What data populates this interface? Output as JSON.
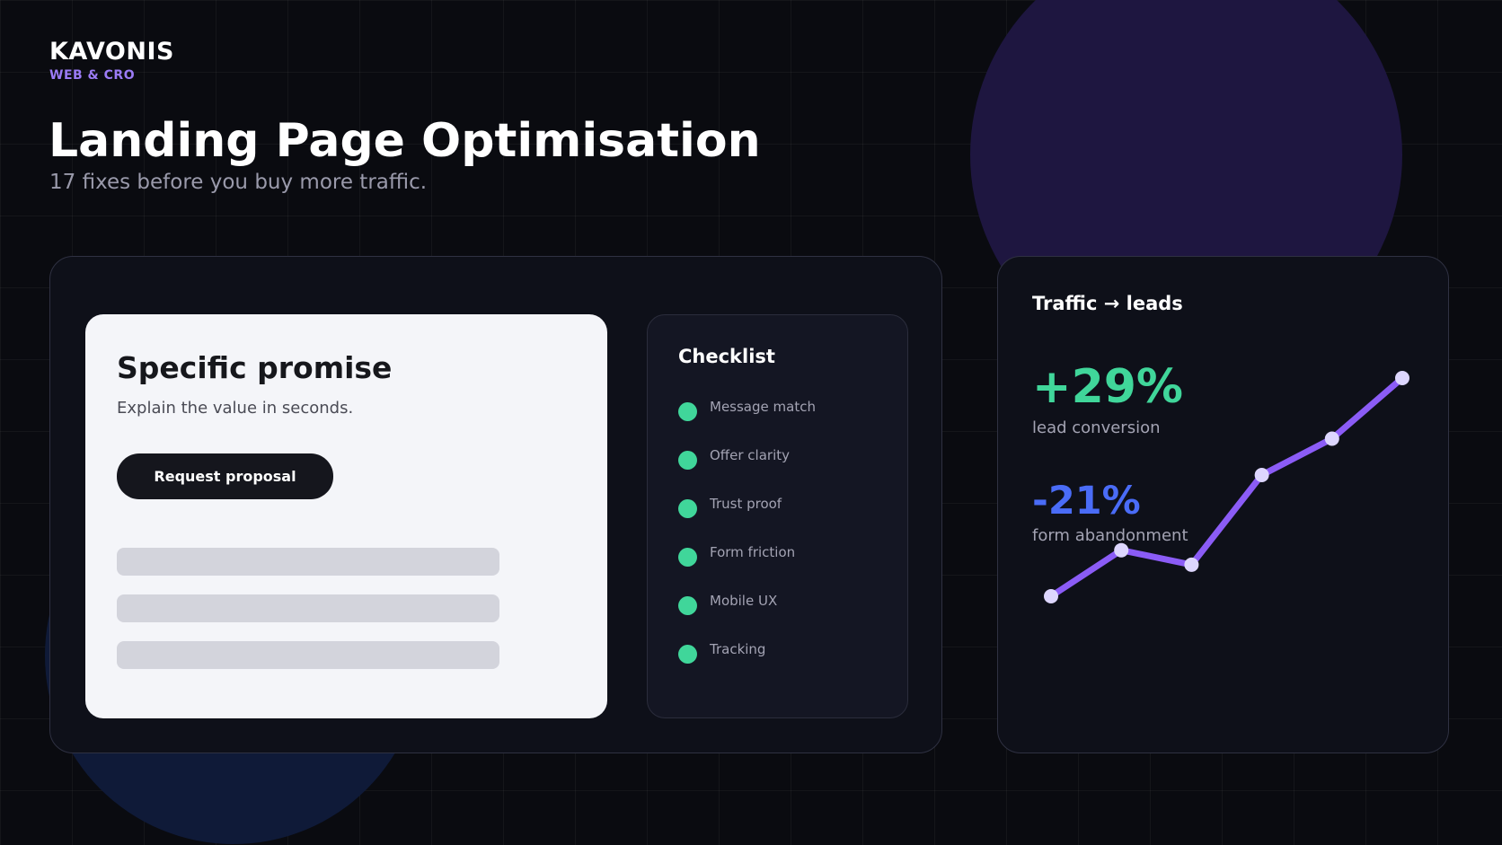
{
  "brand": {
    "name": "KAVONIS",
    "tagline": "WEB & CRO"
  },
  "hero": {
    "title": "Landing Page Optimisation",
    "subtitle": "17 fixes before you buy more traffic."
  },
  "mockup": {
    "heading": "Specific promise",
    "text": "Explain the value in seconds.",
    "cta_label": "Request proposal",
    "placeholder_bar_count": 3
  },
  "checklist": {
    "title": "Checklist",
    "items": [
      {
        "label": "Message match"
      },
      {
        "label": "Offer clarity"
      },
      {
        "label": "Trust proof"
      },
      {
        "label": "Form friction"
      },
      {
        "label": "Mobile UX"
      },
      {
        "label": "Tracking"
      }
    ]
  },
  "traffic": {
    "title": "Traffic → leads",
    "metric1": {
      "value": "+29%",
      "label": "lead conversion"
    },
    "metric2": {
      "value": "-21%",
      "label": "form abandonment"
    },
    "sparkline": [
      10,
      29,
      23,
      60,
      75,
      100
    ]
  },
  "colors": {
    "accent_purple": "#8b5cf6",
    "positive_green": "#40d69a",
    "negative_blue": "#4a6cf7",
    "point_fill": "#ddd6fe"
  },
  "icons": {
    "checklist_marker": "green-dot-icon"
  }
}
